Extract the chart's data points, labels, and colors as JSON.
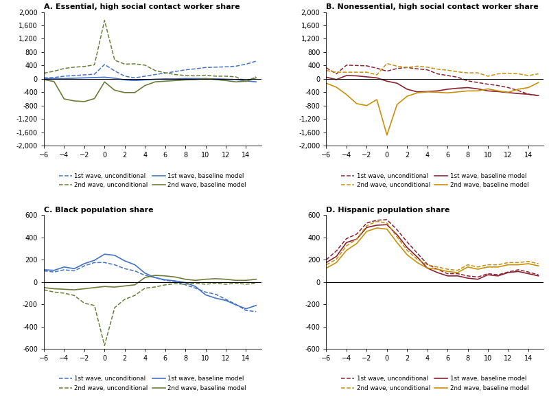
{
  "panels": [
    {
      "title": "A. Essential, high social contact worker share",
      "ylim": [
        -2000,
        2000
      ],
      "yticks": [
        -2000,
        -1600,
        -1200,
        -800,
        -400,
        0,
        400,
        800,
        1200,
        1600,
        2000
      ],
      "color1": "#4472C4",
      "color2": "#6B7B3A",
      "x": [
        -6,
        -5,
        -4,
        -3,
        -2,
        -1,
        0,
        1,
        2,
        3,
        4,
        5,
        6,
        7,
        8,
        9,
        10,
        11,
        12,
        13,
        14,
        15
      ],
      "wave1_uncond": [
        30,
        40,
        80,
        100,
        120,
        140,
        430,
        240,
        80,
        30,
        80,
        130,
        170,
        220,
        270,
        300,
        340,
        350,
        360,
        380,
        440,
        530
      ],
      "wave1_base": [
        10,
        10,
        10,
        20,
        30,
        40,
        50,
        20,
        -30,
        -50,
        -30,
        -10,
        0,
        0,
        10,
        10,
        5,
        0,
        -10,
        -20,
        -60,
        -90
      ],
      "wave2_uncond": [
        170,
        230,
        310,
        350,
        370,
        420,
        1750,
        560,
        440,
        450,
        410,
        250,
        180,
        130,
        100,
        90,
        110,
        80,
        80,
        60,
        -80,
        60
      ],
      "wave2_base": [
        -20,
        -80,
        -600,
        -660,
        -680,
        -590,
        -90,
        -340,
        -410,
        -410,
        -200,
        -90,
        -70,
        -50,
        -30,
        -20,
        10,
        -20,
        -50,
        -90,
        -70,
        30
      ]
    },
    {
      "title": "B. Nonessential, high social contact worker share",
      "ylim": [
        -2000,
        2000
      ],
      "yticks": [
        -2000,
        -1600,
        -1200,
        -800,
        -400,
        0,
        400,
        800,
        1200,
        1600,
        2000
      ],
      "color1": "#8B2232",
      "color2": "#C8900A",
      "x": [
        -6,
        -5,
        -4,
        -3,
        -2,
        -1,
        0,
        1,
        2,
        3,
        4,
        5,
        6,
        7,
        8,
        9,
        10,
        11,
        12,
        13,
        14,
        15
      ],
      "wave1_uncond": [
        330,
        150,
        410,
        400,
        390,
        320,
        230,
        310,
        340,
        300,
        270,
        150,
        100,
        50,
        -60,
        -110,
        -160,
        -200,
        -260,
        -350,
        -460,
        -500
      ],
      "wave1_base": [
        50,
        -20,
        100,
        90,
        60,
        30,
        -70,
        -130,
        -310,
        -390,
        -380,
        -360,
        -310,
        -280,
        -260,
        -300,
        -360,
        -380,
        -410,
        -440,
        -460,
        -500
      ],
      "wave2_uncond": [
        250,
        200,
        200,
        200,
        200,
        120,
        460,
        380,
        340,
        380,
        350,
        290,
        260,
        210,
        180,
        180,
        80,
        150,
        170,
        150,
        100,
        150
      ],
      "wave2_base": [
        -130,
        -250,
        -470,
        -740,
        -800,
        -620,
        -1680,
        -770,
        -520,
        -420,
        -390,
        -400,
        -420,
        -390,
        -360,
        -360,
        -300,
        -360,
        -400,
        -310,
        -260,
        -110
      ]
    },
    {
      "title": "C. Black population share",
      "ylim": [
        -600,
        600
      ],
      "yticks": [
        -600,
        -400,
        -200,
        0,
        200,
        400,
        600
      ],
      "color1": "#4472C4",
      "color2": "#6B7B3A",
      "x": [
        -6,
        -5,
        -4,
        -3,
        -2,
        -1,
        0,
        1,
        2,
        3,
        4,
        5,
        6,
        7,
        8,
        9,
        10,
        11,
        12,
        13,
        14,
        15
      ],
      "wave1_uncond": [
        100,
        90,
        110,
        100,
        145,
        175,
        175,
        155,
        120,
        100,
        60,
        40,
        15,
        5,
        -25,
        -55,
        -90,
        -110,
        -155,
        -200,
        -255,
        -265
      ],
      "wave1_base": [
        110,
        105,
        135,
        120,
        165,
        195,
        250,
        240,
        190,
        155,
        80,
        40,
        20,
        10,
        -5,
        -40,
        -115,
        -145,
        -165,
        -205,
        -240,
        -210
      ],
      "wave2_uncond": [
        -70,
        -90,
        -100,
        -120,
        -190,
        -210,
        -570,
        -230,
        -155,
        -120,
        -55,
        -45,
        -25,
        -15,
        -20,
        -10,
        -20,
        -10,
        -20,
        -10,
        -20,
        -10
      ],
      "wave2_base": [
        -50,
        -60,
        -65,
        -70,
        -60,
        -50,
        -40,
        -45,
        -35,
        -25,
        40,
        60,
        55,
        45,
        25,
        15,
        25,
        30,
        25,
        15,
        15,
        25
      ]
    },
    {
      "title": "D. Hispanic population share",
      "ylim": [
        -600,
        600
      ],
      "yticks": [
        -600,
        -400,
        -200,
        0,
        200,
        400,
        600
      ],
      "color1": "#8B2232",
      "color2": "#C8900A",
      "x": [
        -6,
        -5,
        -4,
        -3,
        -2,
        -1,
        0,
        1,
        2,
        3,
        4,
        5,
        6,
        7,
        8,
        9,
        10,
        11,
        12,
        13,
        14,
        15
      ],
      "wave1_uncond": [
        200,
        280,
        390,
        430,
        530,
        555,
        560,
        470,
        360,
        260,
        160,
        115,
        75,
        75,
        55,
        45,
        75,
        65,
        90,
        110,
        90,
        65
      ],
      "wave1_base": [
        175,
        230,
        355,
        385,
        490,
        510,
        515,
        425,
        310,
        225,
        125,
        85,
        55,
        55,
        35,
        25,
        65,
        55,
        85,
        95,
        75,
        55
      ],
      "wave2_uncond": [
        155,
        205,
        325,
        385,
        505,
        545,
        530,
        405,
        285,
        205,
        155,
        135,
        115,
        105,
        155,
        135,
        155,
        155,
        175,
        175,
        185,
        165
      ],
      "wave2_base": [
        125,
        175,
        285,
        345,
        455,
        485,
        475,
        355,
        245,
        175,
        125,
        115,
        95,
        85,
        135,
        115,
        135,
        135,
        155,
        155,
        165,
        145
      ]
    }
  ],
  "xticks": [
    -6,
    -4,
    -2,
    0,
    2,
    4,
    6,
    8,
    10,
    12,
    14
  ],
  "xlim": [
    -6,
    15.5
  ]
}
